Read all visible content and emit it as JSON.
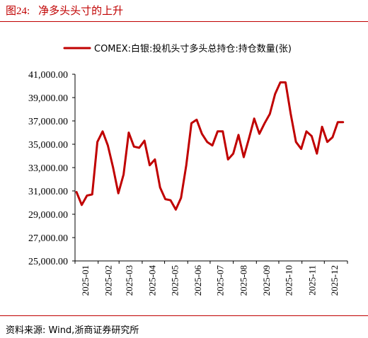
{
  "figure": {
    "number": "图24:",
    "title": "净多头头寸的上升"
  },
  "source": "资料来源: Wind,浙商证券研究所",
  "chart_data": {
    "type": "line",
    "title": "",
    "xlabel": "",
    "ylabel": "",
    "ylim": [
      25000,
      41000
    ],
    "yticks": [
      "25,000.00",
      "27,000.00",
      "29,000.00",
      "31,000.00",
      "33,000.00",
      "35,000.00",
      "37,000.00",
      "39,000.00",
      "41,000.00"
    ],
    "xticks": [
      "2025-01",
      "2025-02",
      "2025-03",
      "2025-04",
      "2025-05",
      "2025-06",
      "2025-07",
      "2025-08",
      "2025-09",
      "2025-10",
      "2025-11",
      "2025-12"
    ],
    "grid": false,
    "legend_position": "top-right",
    "series": [
      {
        "name": "COMEX:白银:投机头寸多头总持仓:持仓数量(张)",
        "color": "#c00000",
        "x": [
          "2025-01-03",
          "2025-01-10",
          "2025-01-17",
          "2025-01-24",
          "2025-01-31",
          "2025-02-07",
          "2025-02-14",
          "2025-02-21",
          "2025-02-28",
          "2025-03-07",
          "2025-03-14",
          "2025-03-21",
          "2025-03-28",
          "2025-04-04",
          "2025-04-11",
          "2025-04-18",
          "2025-04-25",
          "2025-05-02",
          "2025-05-09",
          "2025-05-16",
          "2025-05-23",
          "2025-05-30",
          "2025-06-06",
          "2025-06-13",
          "2025-06-20",
          "2025-06-27",
          "2025-07-04",
          "2025-07-11",
          "2025-07-18",
          "2025-07-25",
          "2025-08-01",
          "2025-08-08",
          "2025-08-15",
          "2025-08-22",
          "2025-08-29",
          "2025-09-05",
          "2025-09-12",
          "2025-09-19",
          "2025-09-26",
          "2025-10-03",
          "2025-10-10",
          "2025-10-17",
          "2025-10-24",
          "2025-10-31",
          "2025-11-07",
          "2025-11-14",
          "2025-11-21",
          "2025-11-28",
          "2025-12-05",
          "2025-12-12",
          "2025-12-19",
          "2025-12-26"
        ],
        "values": [
          30900,
          29800,
          30600,
          30700,
          35200,
          36100,
          34900,
          33000,
          30800,
          32400,
          36000,
          34800,
          34700,
          35300,
          33200,
          33700,
          31300,
          30300,
          30200,
          29400,
          30400,
          33200,
          36800,
          37100,
          35900,
          35200,
          34900,
          36100,
          36100,
          33700,
          34200,
          35800,
          33900,
          35500,
          37200,
          35900,
          36800,
          37600,
          39300,
          40300,
          40300,
          37600,
          35200,
          34600,
          36100,
          35700,
          34200,
          36500,
          35200,
          35600,
          36900,
          36900
        ]
      }
    ]
  }
}
